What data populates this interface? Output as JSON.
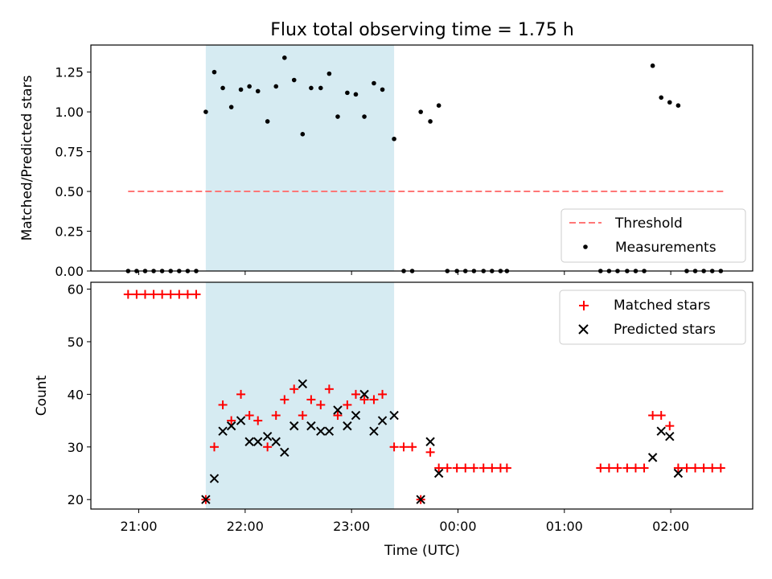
{
  "chart_data": [
    {
      "type": "scatter",
      "title": "Flux total observing time = 1.75 h",
      "xlabel": "",
      "ylabel": "Matched/Predicted stars",
      "ylim": [
        0,
        1.42
      ],
      "yticks": [
        "0.00",
        "0.25",
        "0.50",
        "0.75",
        "1.00",
        "1.25"
      ],
      "ytick_values": [
        0,
        0.25,
        0.5,
        0.75,
        1.0,
        1.25
      ],
      "xlim_hours": [
        20.55,
        26.77
      ],
      "shaded_span_hours": [
        21.63,
        23.4
      ],
      "shaded_color": "#add8e6",
      "legend_position": "lower right",
      "threshold": {
        "name": "Threshold",
        "color": "#ff7777",
        "value": 0.5,
        "x_range_hours": [
          20.9,
          26.5
        ]
      },
      "series": [
        {
          "name": "Measurements",
          "color": "#000000",
          "x_hours": [
            20.9,
            20.98,
            21.06,
            21.14,
            21.22,
            21.3,
            21.38,
            21.46,
            21.54,
            21.63,
            21.71,
            21.79,
            21.87,
            21.96,
            22.04,
            22.12,
            22.21,
            22.29,
            22.37,
            22.46,
            22.54,
            22.62,
            22.71,
            22.79,
            22.87,
            22.96,
            23.04,
            23.12,
            23.21,
            23.29,
            23.4,
            23.49,
            23.57,
            23.65,
            23.74,
            23.82,
            23.9,
            23.99,
            24.07,
            24.15,
            24.24,
            24.32,
            24.4,
            24.46,
            25.34,
            25.42,
            25.5,
            25.59,
            25.67,
            25.75,
            25.83,
            25.91,
            25.99,
            26.07,
            26.15,
            26.23,
            26.31,
            26.39,
            26.47
          ],
          "y": [
            0,
            0,
            0,
            0,
            0,
            0,
            0,
            0,
            0,
            1.0,
            1.25,
            1.15,
            1.03,
            1.14,
            1.16,
            1.13,
            0.94,
            1.16,
            1.34,
            1.2,
            0.86,
            1.15,
            1.15,
            1.24,
            0.97,
            1.12,
            1.11,
            0.97,
            1.18,
            1.14,
            0.83,
            0,
            0,
            1.0,
            0.94,
            1.04,
            0,
            0,
            0,
            0,
            0,
            0,
            0,
            0,
            0,
            0,
            0,
            0,
            0,
            0,
            1.29,
            1.09,
            1.06,
            1.04,
            0,
            0,
            0,
            0,
            0
          ]
        }
      ]
    },
    {
      "type": "scatter",
      "title": "",
      "xlabel": "Time (UTC)",
      "ylabel": "Count",
      "ylim": [
        18.2,
        61.3
      ],
      "yticks": [
        "20",
        "30",
        "40",
        "50",
        "60"
      ],
      "ytick_values": [
        20,
        30,
        40,
        50,
        60
      ],
      "xticks": [
        "21:00",
        "22:00",
        "23:00",
        "00:00",
        "01:00",
        "02:00"
      ],
      "xtick_hours": [
        21,
        22,
        23,
        24,
        25,
        26
      ],
      "xlim_hours": [
        20.55,
        26.77
      ],
      "shaded_span_hours": [
        21.63,
        23.4
      ],
      "shaded_color": "#add8e6",
      "legend_position": "upper right",
      "series": [
        {
          "name": "Matched stars",
          "marker": "plus",
          "color": "#ff0000",
          "x_hours": [
            20.9,
            20.98,
            21.06,
            21.14,
            21.22,
            21.3,
            21.38,
            21.46,
            21.54,
            21.63,
            21.71,
            21.79,
            21.87,
            21.96,
            22.04,
            22.12,
            22.21,
            22.29,
            22.37,
            22.46,
            22.54,
            22.62,
            22.71,
            22.79,
            22.87,
            22.96,
            23.04,
            23.12,
            23.21,
            23.29,
            23.4,
            23.49,
            23.57,
            23.65,
            23.74,
            23.82,
            23.9,
            23.99,
            24.07,
            24.15,
            24.24,
            24.32,
            24.4,
            24.46,
            25.34,
            25.42,
            25.5,
            25.59,
            25.67,
            25.75,
            25.83,
            25.91,
            25.99,
            26.07,
            26.15,
            26.23,
            26.31,
            26.39,
            26.47
          ],
          "y": [
            59,
            59,
            59,
            59,
            59,
            59,
            59,
            59,
            59,
            20,
            30,
            38,
            35,
            40,
            36,
            35,
            30,
            36,
            39,
            41,
            36,
            39,
            38,
            41,
            36,
            38,
            40,
            39,
            39,
            40,
            30,
            30,
            30,
            20,
            29,
            26,
            26,
            26,
            26,
            26,
            26,
            26,
            26,
            26,
            26,
            26,
            26,
            26,
            26,
            26,
            36,
            36,
            34,
            26,
            26,
            26,
            26,
            26,
            26
          ]
        },
        {
          "name": "Predicted stars",
          "marker": "x",
          "color": "#000000",
          "x_hours": [
            21.63,
            21.71,
            21.79,
            21.87,
            21.96,
            22.04,
            22.12,
            22.21,
            22.29,
            22.37,
            22.46,
            22.54,
            22.62,
            22.71,
            22.79,
            22.87,
            22.96,
            23.04,
            23.12,
            23.21,
            23.29,
            23.4,
            23.65,
            23.74,
            23.82,
            25.83,
            25.91,
            25.99,
            26.07
          ],
          "y": [
            20,
            24,
            33,
            34,
            35,
            31,
            31,
            32,
            31,
            29,
            34,
            42,
            34,
            33,
            33,
            37,
            34,
            36,
            40,
            33,
            35,
            36,
            20,
            31,
            25,
            28,
            33,
            32,
            25
          ]
        }
      ]
    }
  ]
}
